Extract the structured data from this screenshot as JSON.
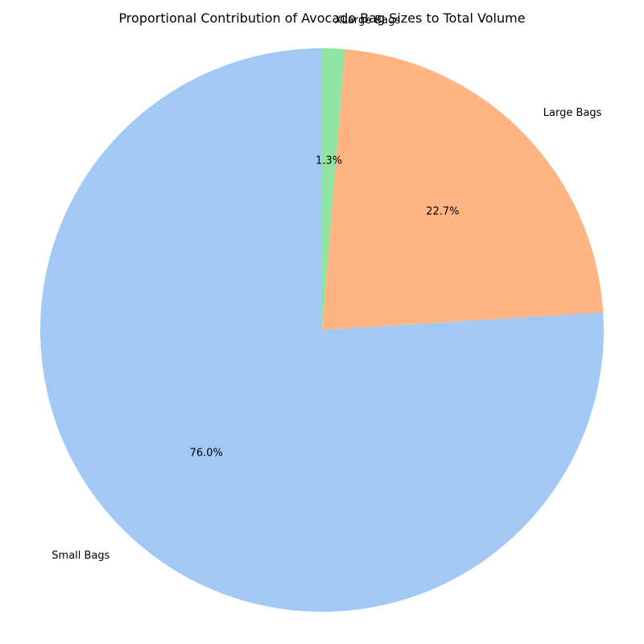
{
  "chart_data": {
    "type": "pie",
    "title": "Proportional Contribution of Avocado Bag Sizes to Total Volume",
    "categories": [
      "Small Bags",
      "Large Bags",
      "XLarge Bags"
    ],
    "values": [
      76.0,
      22.7,
      1.3
    ],
    "percent_labels": [
      "76.0%",
      "22.7%",
      "1.3%"
    ],
    "colors": [
      "#a1c9f4",
      "#ffb482",
      "#8de5a1"
    ],
    "start_angle_deg": 90,
    "direction": "counterclockwise",
    "legend": "none"
  }
}
